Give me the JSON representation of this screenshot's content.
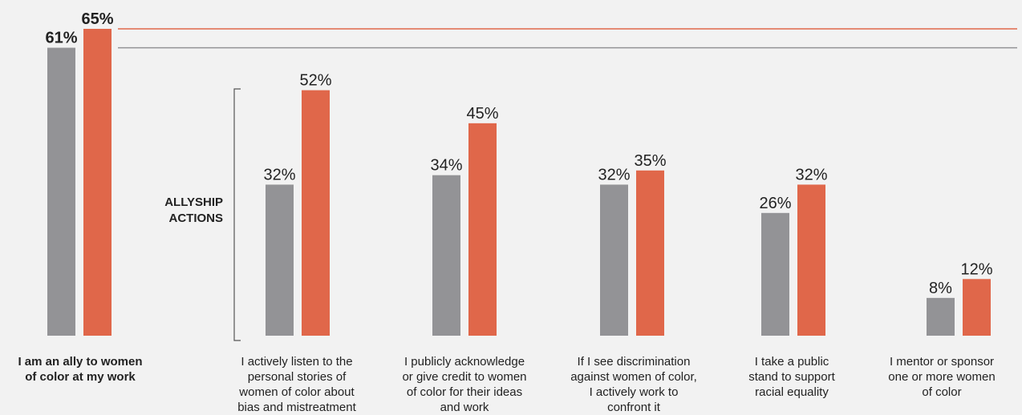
{
  "chart_data": {
    "type": "bar",
    "categories": [
      "I am an ally to women\nof color at my work",
      "I actively listen to the\npersonal stories of\nwomen of color about\nbias and mistreatment",
      "I publicly acknowledge\nor give credit to women\nof color for their ideas\nand work",
      "If I see discrimination\nagainst women of color,\nI actively work to\nconfront it",
      "I take a public\nstand to support\nracial equality",
      "I mentor or sponsor\none or more women\nof color"
    ],
    "series": [
      {
        "values": [
          61,
          32,
          34,
          32,
          26,
          8
        ],
        "labels": [
          "61%",
          "32%",
          "34%",
          "32%",
          "26%",
          "8%"
        ],
        "color": "#939396"
      },
      {
        "values": [
          65,
          52,
          45,
          35,
          32,
          12
        ],
        "labels": [
          "65%",
          "52%",
          "45%",
          "35%",
          "32%",
          "12%"
        ],
        "color": "#e0674a"
      }
    ],
    "bracket_label": [
      "ALLYSHIP",
      "ACTIONS"
    ],
    "reference_lines": [
      {
        "value": 65,
        "color": "#e0674a"
      },
      {
        "value": 61,
        "color": "#939396"
      }
    ],
    "ylim": [
      0,
      65
    ],
    "grid": false,
    "title": "",
    "xlabel": "",
    "ylabel": ""
  }
}
